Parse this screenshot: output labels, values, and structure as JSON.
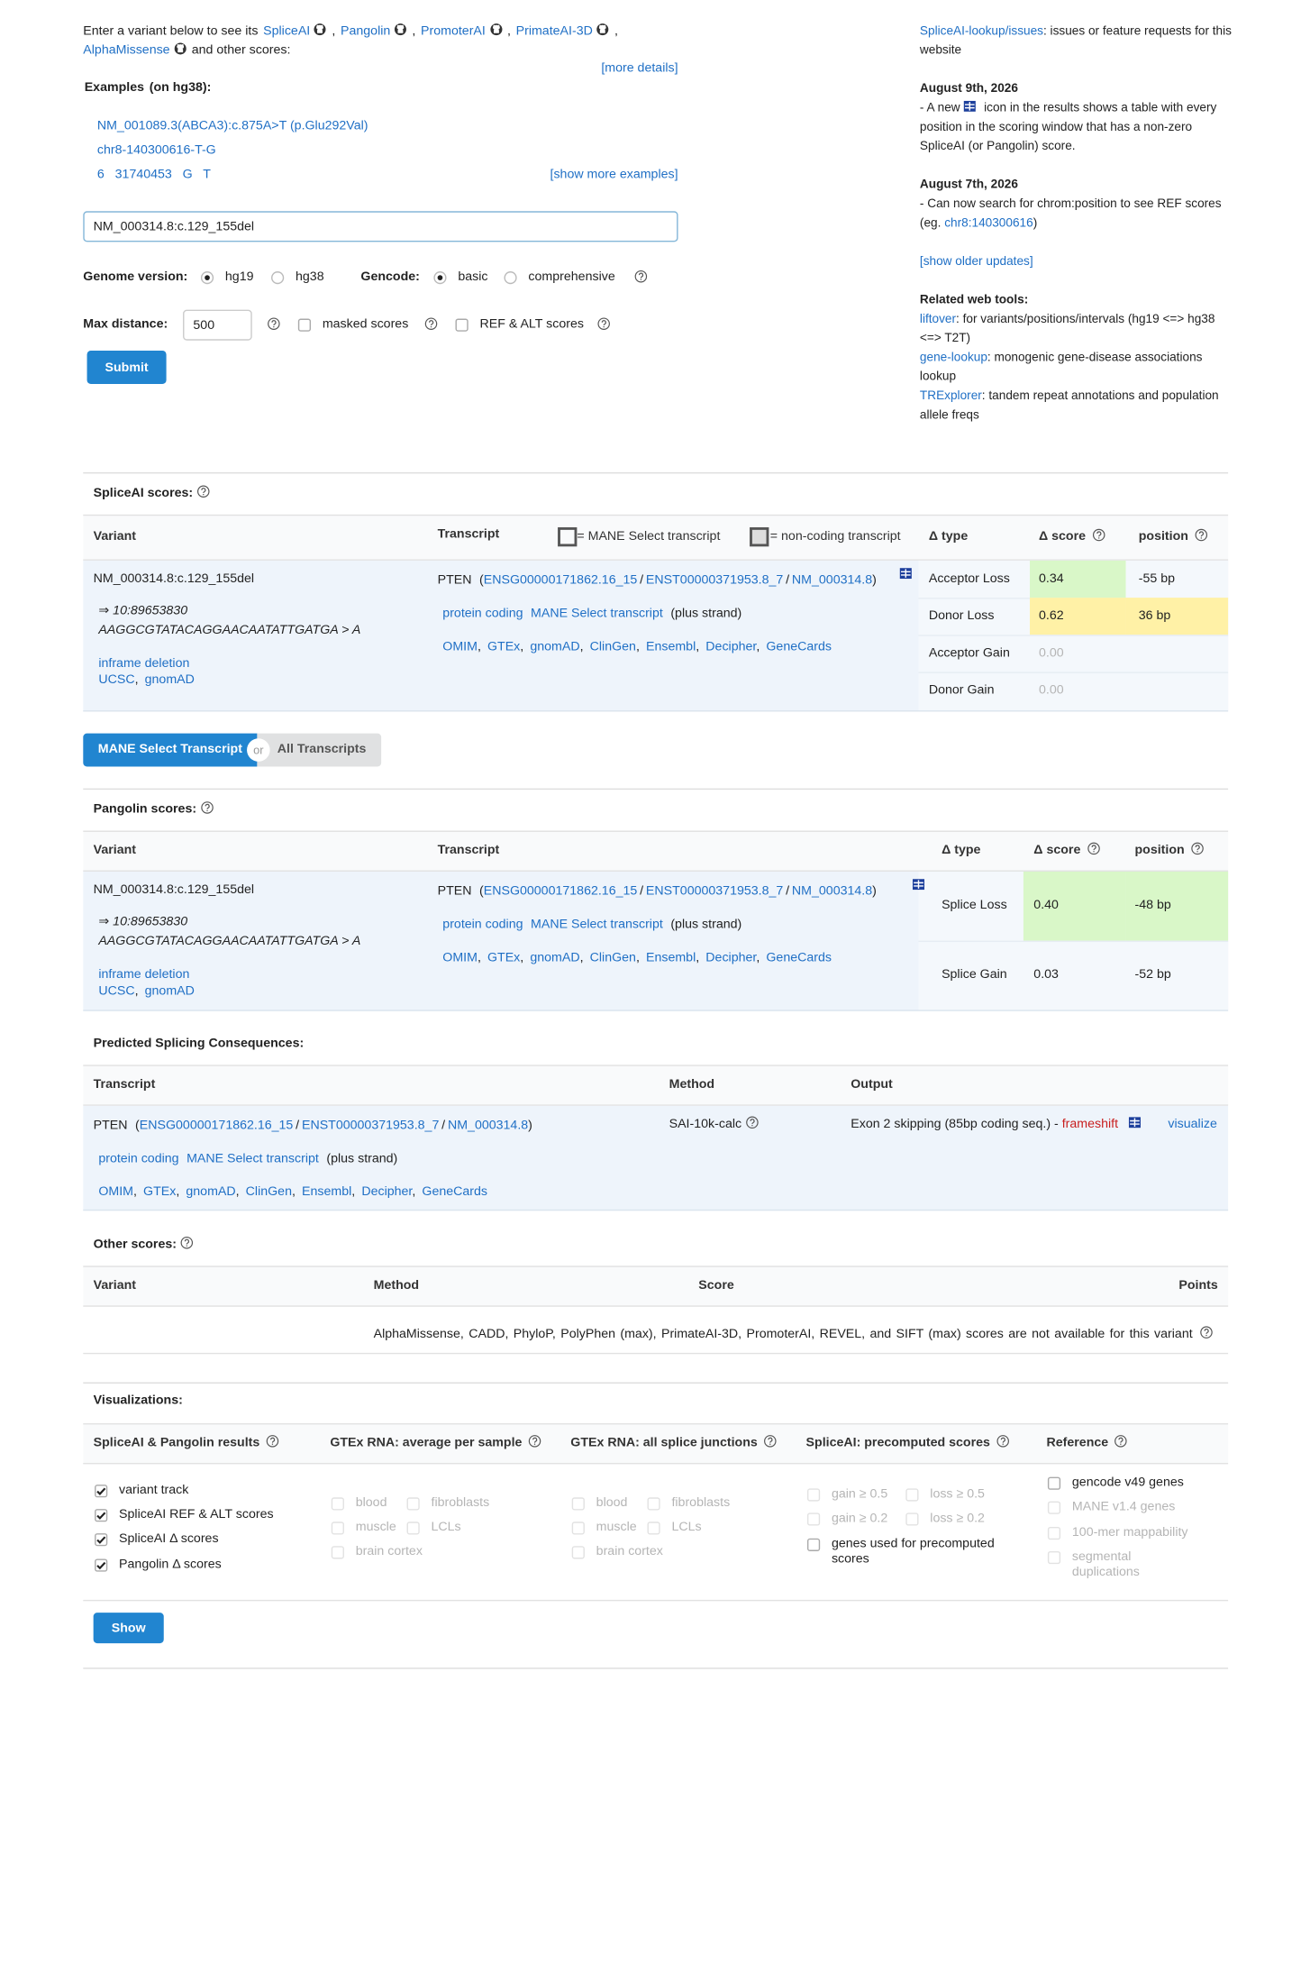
{
  "punct": {
    "comma": ",",
    "slash": "/",
    "open": "(",
    "close": ")"
  },
  "intro": {
    "lead": "Enter a variant below to see its",
    "tools": [
      "SpliceAI",
      "Pangolin",
      "PromoterAI",
      "PrimateAI-3D",
      "AlphaMissense"
    ],
    "tail": "and other scores:",
    "more_details": "[more details]"
  },
  "examples": {
    "label": "Examples",
    "note": "(on hg38):",
    "items": [
      "NM_001089.3(ABCA3):c.875A>T (p.Glu292Val)",
      "chr8-140300616-T-G",
      "6   31740453   G   T"
    ],
    "show_more": "[show more examples]"
  },
  "form": {
    "input": "NM_000314.8:c.129_155del",
    "genome_label": "Genome version:",
    "genome_options": [
      "hg19",
      "hg38"
    ],
    "gencode_label": "Gencode:",
    "gencode_options": [
      "basic",
      "comprehensive"
    ],
    "max_distance_label": "Max distance:",
    "max_distance": "500",
    "masked": "masked scores",
    "ref_alt": "REF & ALT scores",
    "submit": "Submit"
  },
  "news": {
    "issues_link": "SpliceAI-lookup/issues",
    "issues_text": ": issues or feature requests for this website",
    "updates": [
      {
        "date": "August 9th, 2026",
        "before": "- A new",
        "after": "icon in the results shows a table with every position in the scoring window that has a non-zero SpliceAI (or Pangolin) score."
      },
      {
        "date": "August 7th, 2026",
        "before": "- Can now search for chrom:position to see REF scores (eg.",
        "link": "chr8:140300616",
        "after": ")"
      }
    ],
    "older": "[show older updates]",
    "tools_title": "Related web tools:",
    "tools": [
      {
        "name": "liftover",
        "text": ": for variants/positions/intervals (hg19 <=> hg38 <=> T2T)"
      },
      {
        "name": "gene-lookup",
        "text": ": monogenic gene-disease associations lookup"
      },
      {
        "name": "TRExplorer",
        "text": ": tandem repeat annotations and population allele freqs"
      }
    ]
  },
  "variant": {
    "name": "NM_000314.8:c.129_155del",
    "arrow": "⇒ 10:89653830",
    "change": "AAGGCGTATACAGGAACAATATTGATGA > A",
    "consequence": "inframe deletion",
    "links": [
      "UCSC",
      "gnomAD"
    ]
  },
  "transcript": {
    "gene": "PTEN",
    "ids": [
      "ENSG00000171862.16_15",
      "ENST00000371953.8_7",
      "NM_000314.8"
    ],
    "tags": [
      "protein coding",
      "MANE Select transcript"
    ],
    "strand": "(plus strand)",
    "links": [
      "OMIM",
      "GTEx",
      "gnomAD",
      "ClinGen",
      "Ensembl",
      "Decipher",
      "GeneCards"
    ]
  },
  "spliceai": {
    "title": "SpliceAI scores:",
    "headers": {
      "variant": "Variant",
      "transcript": "Transcript",
      "mane_legend": "= MANE Select transcript",
      "noncoding_legend": "= non-coding transcript",
      "type": "Δ type",
      "score": "Δ score",
      "position": "position"
    },
    "rows": [
      {
        "type": "Acceptor Loss",
        "score": "0.34",
        "position": "-55 bp"
      },
      {
        "type": "Donor Loss",
        "score": "0.62",
        "position": "36 bp"
      },
      {
        "type": "Acceptor Gain",
        "score": "0.00",
        "position": null
      },
      {
        "type": "Donor Gain",
        "score": "0.00",
        "position": null
      }
    ]
  },
  "toggle": {
    "mane": "MANE Select Transcript",
    "or": "or",
    "all": "All Transcripts"
  },
  "pangolin": {
    "title": "Pangolin scores:",
    "headers": {
      "variant": "Variant",
      "transcript": "Transcript",
      "type": "Δ type",
      "score": "Δ score",
      "position": "position"
    },
    "rows": [
      {
        "type": "Splice Loss",
        "score": "0.40",
        "position": "-48 bp"
      },
      {
        "type": "Splice Gain",
        "score": "0.03",
        "position": "-52 bp"
      }
    ]
  },
  "consequences": {
    "title": "Predicted Splicing Consequences:",
    "headers": {
      "transcript": "Transcript",
      "method": "Method",
      "output": "Output"
    },
    "method": "SAI-10k-calc",
    "output": "Exon 2 skipping (85bp coding seq.) -",
    "effect": "frameshift",
    "visualize": "visualize"
  },
  "other_scores": {
    "title": "Other scores:",
    "headers": {
      "variant": "Variant",
      "method": "Method",
      "score": "Score",
      "points": "Points"
    },
    "message": "AlphaMissense, CADD, PhyloP, PolyPhen (max), PrimateAI-3D, PromoterAI, REVEL, and SIFT (max) scores are not available for this variant"
  },
  "visualizations": {
    "title": "Visualizations:",
    "columns": [
      {
        "title": "SpliceAI & Pangolin results",
        "items": [
          "variant track",
          "SpliceAI REF & ALT scores",
          "SpliceAI Δ scores",
          "Pangolin Δ scores"
        ]
      },
      {
        "title": "GTEx RNA: average per sample",
        "items": [
          "blood",
          "fibroblasts",
          "muscle",
          "LCLs",
          "brain cortex"
        ]
      },
      {
        "title": "GTEx RNA: all splice junctions",
        "items": [
          "blood",
          "fibroblasts",
          "muscle",
          "LCLs",
          "brain cortex"
        ]
      },
      {
        "title": "SpliceAI: precomputed scores",
        "items": [
          "gain ≥ 0.5",
          "loss ≥ 0.5",
          "gain ≥ 0.2",
          "loss ≥ 0.2",
          "genes used for precomputed scores"
        ]
      },
      {
        "title": "Reference",
        "items": [
          "gencode v49 genes",
          "MANE v1.4 genes",
          "100-mer mappability",
          "segmental duplications"
        ]
      }
    ],
    "show": "Show"
  }
}
